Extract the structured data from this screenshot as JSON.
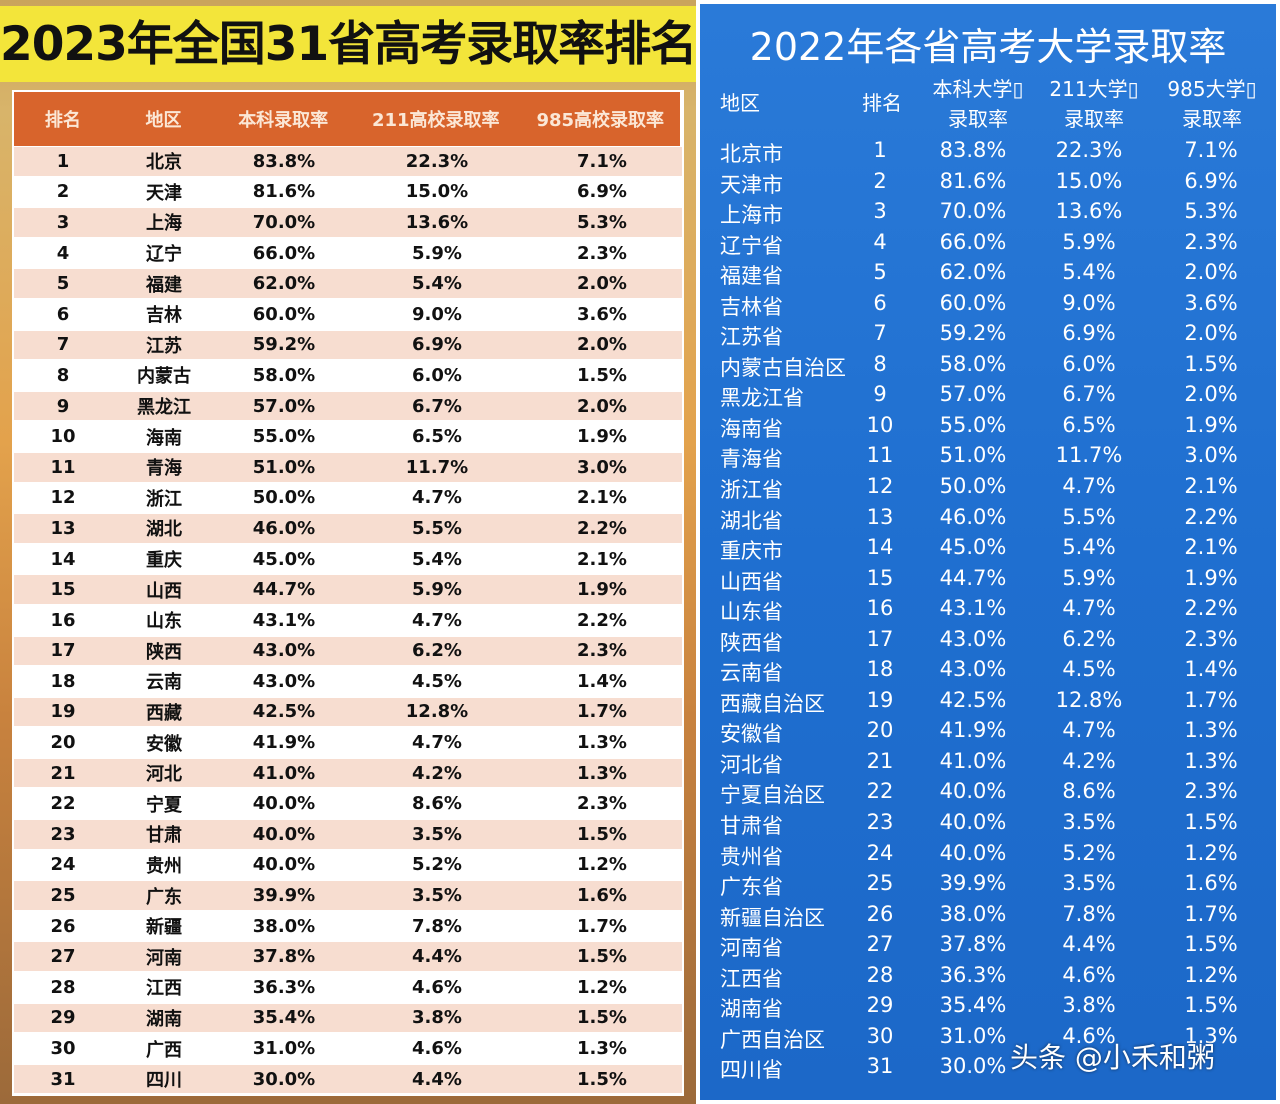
{
  "left": {
    "title": "2023年全国31省高考录取率排名",
    "headers": [
      "排名",
      "地区",
      "本科录取率",
      "211高校录取率",
      "985高校录取率"
    ],
    "rows": [
      [
        "1",
        "北京",
        "83.8%",
        "22.3%",
        "7.1%"
      ],
      [
        "2",
        "天津",
        "81.6%",
        "15.0%",
        "6.9%"
      ],
      [
        "3",
        "上海",
        "70.0%",
        "13.6%",
        "5.3%"
      ],
      [
        "4",
        "辽宁",
        "66.0%",
        "5.9%",
        "2.3%"
      ],
      [
        "5",
        "福建",
        "62.0%",
        "5.4%",
        "2.0%"
      ],
      [
        "6",
        "吉林",
        "60.0%",
        "9.0%",
        "3.6%"
      ],
      [
        "7",
        "江苏",
        "59.2%",
        "6.9%",
        "2.0%"
      ],
      [
        "8",
        "内蒙古",
        "58.0%",
        "6.0%",
        "1.5%"
      ],
      [
        "9",
        "黑龙江",
        "57.0%",
        "6.7%",
        "2.0%"
      ],
      [
        "10",
        "海南",
        "55.0%",
        "6.5%",
        "1.9%"
      ],
      [
        "11",
        "青海",
        "51.0%",
        "11.7%",
        "3.0%"
      ],
      [
        "12",
        "浙江",
        "50.0%",
        "4.7%",
        "2.1%"
      ],
      [
        "13",
        "湖北",
        "46.0%",
        "5.5%",
        "2.2%"
      ],
      [
        "14",
        "重庆",
        "45.0%",
        "5.4%",
        "2.1%"
      ],
      [
        "15",
        "山西",
        "44.7%",
        "5.9%",
        "1.9%"
      ],
      [
        "16",
        "山东",
        "43.1%",
        "4.7%",
        "2.2%"
      ],
      [
        "17",
        "陕西",
        "43.0%",
        "6.2%",
        "2.3%"
      ],
      [
        "18",
        "云南",
        "43.0%",
        "4.5%",
        "1.4%"
      ],
      [
        "19",
        "西藏",
        "42.5%",
        "12.8%",
        "1.7%"
      ],
      [
        "20",
        "安徽",
        "41.9%",
        "4.7%",
        "1.3%"
      ],
      [
        "21",
        "河北",
        "41.0%",
        "4.2%",
        "1.3%"
      ],
      [
        "22",
        "宁夏",
        "40.0%",
        "8.6%",
        "2.3%"
      ],
      [
        "23",
        "甘肃",
        "40.0%",
        "3.5%",
        "1.5%"
      ],
      [
        "24",
        "贵州",
        "40.0%",
        "5.2%",
        "1.2%"
      ],
      [
        "25",
        "广东",
        "39.9%",
        "3.5%",
        "1.6%"
      ],
      [
        "26",
        "新疆",
        "38.0%",
        "7.8%",
        "1.7%"
      ],
      [
        "27",
        "河南",
        "37.8%",
        "4.4%",
        "1.5%"
      ],
      [
        "28",
        "江西",
        "36.3%",
        "4.6%",
        "1.2%"
      ],
      [
        "29",
        "湖南",
        "35.4%",
        "3.8%",
        "1.5%"
      ],
      [
        "30",
        "广西",
        "31.0%",
        "4.6%",
        "1.3%"
      ],
      [
        "31",
        "四川",
        "30.0%",
        "4.4%",
        "1.5%"
      ]
    ]
  },
  "right": {
    "title": "2022年各省高考大学录取率",
    "headers": {
      "region": "地区",
      "rank": "排名",
      "bachelor_line1": "本科大学▯",
      "bachelor_line2": "录取率",
      "u211_line1": "211大学▯",
      "u211_line2": "录取率",
      "u985_line1": "985大学▯",
      "u985_line2": "录取率"
    },
    "rows": [
      [
        "北京市",
        "1",
        "83.8%",
        "22.3%",
        "7.1%"
      ],
      [
        "天津市",
        "2",
        "81.6%",
        "15.0%",
        "6.9%"
      ],
      [
        "上海市",
        "3",
        "70.0%",
        "13.6%",
        "5.3%"
      ],
      [
        "辽宁省",
        "4",
        "66.0%",
        "5.9%",
        "2.3%"
      ],
      [
        "福建省",
        "5",
        "62.0%",
        "5.4%",
        "2.0%"
      ],
      [
        "吉林省",
        "6",
        "60.0%",
        "9.0%",
        "3.6%"
      ],
      [
        "江苏省",
        "7",
        "59.2%",
        "6.9%",
        "2.0%"
      ],
      [
        "内蒙古自治区",
        "8",
        "58.0%",
        "6.0%",
        "1.5%"
      ],
      [
        "黑龙江省",
        "9",
        "57.0%",
        "6.7%",
        "2.0%"
      ],
      [
        "海南省",
        "10",
        "55.0%",
        "6.5%",
        "1.9%"
      ],
      [
        "青海省",
        "11",
        "51.0%",
        "11.7%",
        "3.0%"
      ],
      [
        "浙江省",
        "12",
        "50.0%",
        "4.7%",
        "2.1%"
      ],
      [
        "湖北省",
        "13",
        "46.0%",
        "5.5%",
        "2.2%"
      ],
      [
        "重庆市",
        "14",
        "45.0%",
        "5.4%",
        "2.1%"
      ],
      [
        "山西省",
        "15",
        "44.7%",
        "5.9%",
        "1.9%"
      ],
      [
        "山东省",
        "16",
        "43.1%",
        "4.7%",
        "2.2%"
      ],
      [
        "陕西省",
        "17",
        "43.0%",
        "6.2%",
        "2.3%"
      ],
      [
        "云南省",
        "18",
        "43.0%",
        "4.5%",
        "1.4%"
      ],
      [
        "西藏自治区",
        "19",
        "42.5%",
        "12.8%",
        "1.7%"
      ],
      [
        "安徽省",
        "20",
        "41.9%",
        "4.7%",
        "1.3%"
      ],
      [
        "河北省",
        "21",
        "41.0%",
        "4.2%",
        "1.3%"
      ],
      [
        "宁夏自治区",
        "22",
        "40.0%",
        "8.6%",
        "2.3%"
      ],
      [
        "甘肃省",
        "23",
        "40.0%",
        "3.5%",
        "1.5%"
      ],
      [
        "贵州省",
        "24",
        "40.0%",
        "5.2%",
        "1.2%"
      ],
      [
        "广东省",
        "25",
        "39.9%",
        "3.5%",
        "1.6%"
      ],
      [
        "新疆自治区",
        "26",
        "38.0%",
        "7.8%",
        "1.7%"
      ],
      [
        "河南省",
        "27",
        "37.8%",
        "4.4%",
        "1.5%"
      ],
      [
        "江西省",
        "28",
        "36.3%",
        "4.6%",
        "1.2%"
      ],
      [
        "湖南省",
        "29",
        "35.4%",
        "3.8%",
        "1.5%"
      ],
      [
        "广西自治区",
        "30",
        "31.0%",
        "4.6%",
        "1.3%"
      ],
      [
        "四川省",
        "31",
        "30.0%",
        "",
        ""
      ]
    ]
  },
  "watermark": "头条 @小禾和粥"
}
